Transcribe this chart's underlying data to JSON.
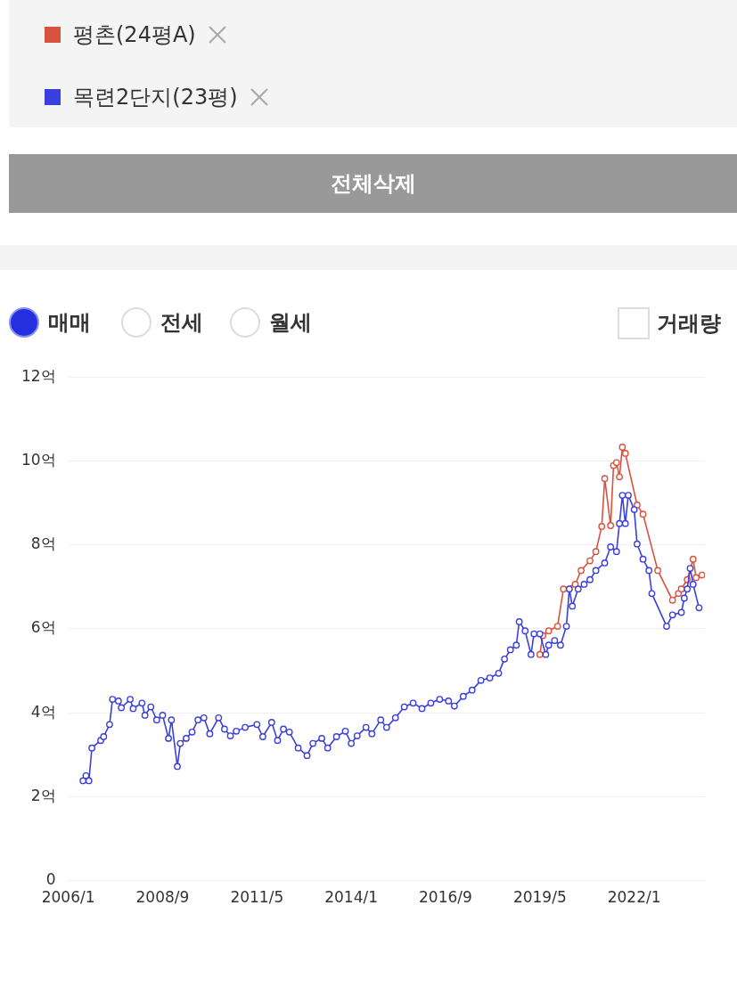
{
  "chart_data": {
    "type": "line",
    "legend": "top left",
    "marker": "circle",
    "line_style": "solid",
    "grid": "y",
    "annotations": [
      "전체삭제",
      "매매",
      "전세",
      "월세",
      "거래량"
    ],
    "xlim": [
      "2006-01",
      "2024-01"
    ],
    "xticks": [
      {
        "value": "2006-01",
        "label": "2006/1"
      },
      {
        "value": "2008-09",
        "label": "2008/9"
      },
      {
        "value": "2011-05",
        "label": "2011/5"
      },
      {
        "value": "2014-01",
        "label": "2014/1"
      },
      {
        "value": "2016-09",
        "label": "2016/9"
      },
      {
        "value": "2019-05",
        "label": "2019/5"
      },
      {
        "value": "2022-01",
        "label": "2022/1"
      }
    ],
    "ylim": [
      0,
      12
    ],
    "yticks": [
      0,
      {
        "value": 2,
        "label": "2억"
      },
      {
        "value": 4,
        "label": "4억"
      },
      {
        "value": 6,
        "label": "6억"
      },
      {
        "value": 8,
        "label": "8억"
      },
      {
        "value": 10,
        "label": "10억"
      },
      {
        "value": 12,
        "label": "12억"
      }
    ],
    "series": [
      {
        "name": "평촌(24평A)",
        "color": "#d9523f",
        "x": [
          "2019-05",
          "2019-06",
          "2019-08",
          "2019-11",
          "2020-01",
          "2020-05",
          "2020-07",
          "2020-10",
          "2020-12",
          "2021-02",
          "2021-03",
          "2021-05",
          "2021-06",
          "2021-07",
          "2021-08",
          "2021-09",
          "2021-10",
          "2022-02",
          "2022-04",
          "2022-09",
          "2023-02",
          "2023-04",
          "2023-05",
          "2023-07",
          "2023-09",
          "2023-10",
          "2023-12"
        ],
        "values": [
          5.39,
          5.84,
          5.95,
          6.06,
          6.95,
          7.06,
          7.39,
          7.62,
          7.84,
          8.44,
          9.58,
          8.46,
          9.89,
          9.96,
          9.62,
          10.33,
          10.18,
          8.95,
          8.73,
          7.39,
          6.68,
          6.84,
          6.95,
          7.17,
          7.66,
          7.22,
          7.28
        ]
      },
      {
        "name": "목련2단지(23평)",
        "color": "#3b3fe0",
        "x": [
          "2006-06",
          "2006-07",
          "2006-08",
          "2006-09",
          "2006-12",
          "2007-01",
          "2007-03",
          "2007-04",
          "2007-06",
          "2007-07",
          "2007-10",
          "2007-11",
          "2008-02",
          "2008-03",
          "2008-05",
          "2008-07",
          "2008-09",
          "2008-11",
          "2008-12",
          "2009-02",
          "2009-03",
          "2009-05",
          "2009-07",
          "2009-09",
          "2009-11",
          "2010-01",
          "2010-04",
          "2010-06",
          "2010-08",
          "2010-10",
          "2011-01",
          "2011-05",
          "2011-07",
          "2011-10",
          "2011-12",
          "2012-02",
          "2012-04",
          "2012-07",
          "2012-10",
          "2012-12",
          "2013-03",
          "2013-05",
          "2013-08",
          "2013-11",
          "2014-01",
          "2014-03",
          "2014-06",
          "2014-08",
          "2014-11",
          "2015-01",
          "2015-04",
          "2015-07",
          "2015-10",
          "2016-01",
          "2016-04",
          "2016-07",
          "2016-10",
          "2016-12",
          "2017-03",
          "2017-06",
          "2017-09",
          "2017-12",
          "2018-03",
          "2018-05",
          "2018-07",
          "2018-09",
          "2018-10",
          "2018-12",
          "2019-02",
          "2019-03",
          "2019-05",
          "2019-07",
          "2019-08",
          "2019-10",
          "2019-12",
          "2020-02",
          "2020-03",
          "2020-04",
          "2020-06",
          "2020-08",
          "2020-10",
          "2020-12",
          "2021-03",
          "2021-05",
          "2021-07",
          "2021-08",
          "2021-09",
          "2021-10",
          "2021-11",
          "2022-01",
          "2022-02",
          "2022-04",
          "2022-06",
          "2022-07",
          "2022-12",
          "2023-02",
          "2023-05",
          "2023-06",
          "2023-07",
          "2023-08",
          "2023-09",
          "2023-11"
        ],
        "values": [
          2.38,
          2.5,
          2.38,
          3.16,
          3.34,
          3.43,
          3.72,
          4.32,
          4.28,
          4.12,
          4.32,
          4.1,
          4.23,
          3.94,
          4.14,
          3.83,
          3.94,
          3.39,
          3.83,
          2.72,
          3.27,
          3.39,
          3.54,
          3.83,
          3.88,
          3.5,
          3.88,
          3.61,
          3.45,
          3.56,
          3.65,
          3.72,
          3.43,
          3.77,
          3.34,
          3.61,
          3.54,
          3.16,
          2.98,
          3.27,
          3.39,
          3.16,
          3.43,
          3.56,
          3.27,
          3.45,
          3.65,
          3.5,
          3.83,
          3.65,
          3.88,
          4.14,
          4.23,
          4.1,
          4.23,
          4.32,
          4.28,
          4.16,
          4.39,
          4.54,
          4.77,
          4.83,
          4.94,
          5.28,
          5.5,
          5.61,
          6.17,
          5.95,
          5.39,
          5.88,
          5.88,
          5.39,
          5.61,
          5.72,
          5.61,
          6.06,
          6.95,
          6.54,
          6.95,
          7.06,
          7.17,
          7.39,
          7.57,
          7.95,
          7.84,
          8.51,
          9.18,
          8.51,
          9.18,
          8.84,
          8.02,
          7.66,
          7.39,
          6.84,
          6.06,
          6.33,
          6.39,
          6.73,
          6.95,
          7.44,
          7.06,
          6.5
        ]
      }
    ]
  }
}
